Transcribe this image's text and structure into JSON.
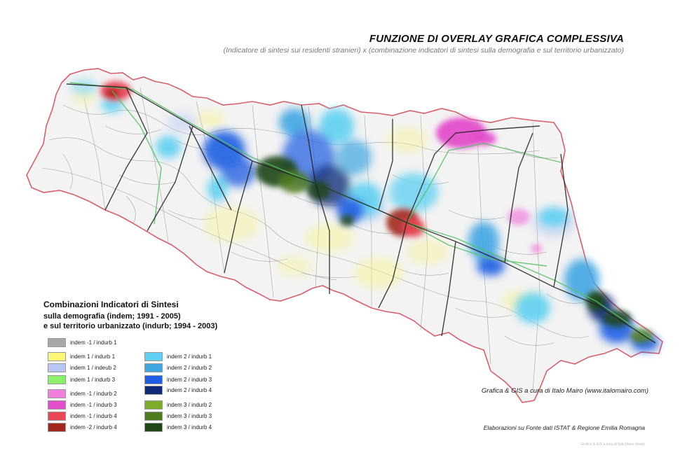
{
  "header": {
    "title": "FUNZIONE  DI OVERLAY GRAFICA COMPLESSIVA",
    "subtitle": "(Indicatore di sintesi sui residenti stranieri) x (combinazione indicatori di sintesi sulla demografia e sul territorio urbanizzato)"
  },
  "legend": {
    "title": "Combinazioni Indicatori di Sintesi",
    "subtitle_1": "sulla demografia (indem; 1991 - 2005)",
    "subtitle_2": "e sul territorio urbanizzato (indurb; 1994 - 2003)",
    "items": [
      {
        "label": "indem -1 / indurb 1",
        "color": "#a8a8a8"
      },
      {
        "label": "indem 1 / indurb 1",
        "color": "#fbf57a"
      },
      {
        "label": "indem 1 / indeub 2",
        "color": "#b9c6f4"
      },
      {
        "label": "indem 1 / indurb 3",
        "color": "#8cf06a"
      },
      {
        "label": "indem -1 / indurb 2",
        "color": "#f07fdc"
      },
      {
        "label": "indem -1 / indurb 3",
        "color": "#e24ec9"
      },
      {
        "label": "indem -1 / indurb 4",
        "color": "#ea4656"
      },
      {
        "label": "indem -2 / indurb 4",
        "color": "#a3271c"
      },
      {
        "label": "indem 2 / indurb 1",
        "color": "#5fd0f2"
      },
      {
        "label": "indem 2 / indurb 2",
        "color": "#3fa6e2"
      },
      {
        "label": "indem 2 / indurb 3",
        "color": "#1f5ee2"
      },
      {
        "label": "indem 2 / indurb 4",
        "color": "#0f2a78"
      },
      {
        "label": "indem 3 / indurb 2",
        "color": "#7dab2c"
      },
      {
        "label": "indem 3 / indurb 3",
        "color": "#4f7a1d"
      },
      {
        "label": "indem 3 / indurb 4",
        "color": "#1f4614"
      }
    ]
  },
  "credits": {
    "graphics": "Grafica & GIS a cura di Italo Mairo (www.italomairo.com)",
    "source": "Elaborazioni su Fonte dati ISTAT & Regione Emilia Romagna",
    "watermark": "Grafica & GIS a cura di Italo Mairo (www)"
  },
  "colors": {
    "region_fill": "#f3f3f3",
    "border": "#d9606a",
    "roads": "#222222",
    "rail": "#55c060",
    "municipal_lines": "#9a9a9a"
  }
}
